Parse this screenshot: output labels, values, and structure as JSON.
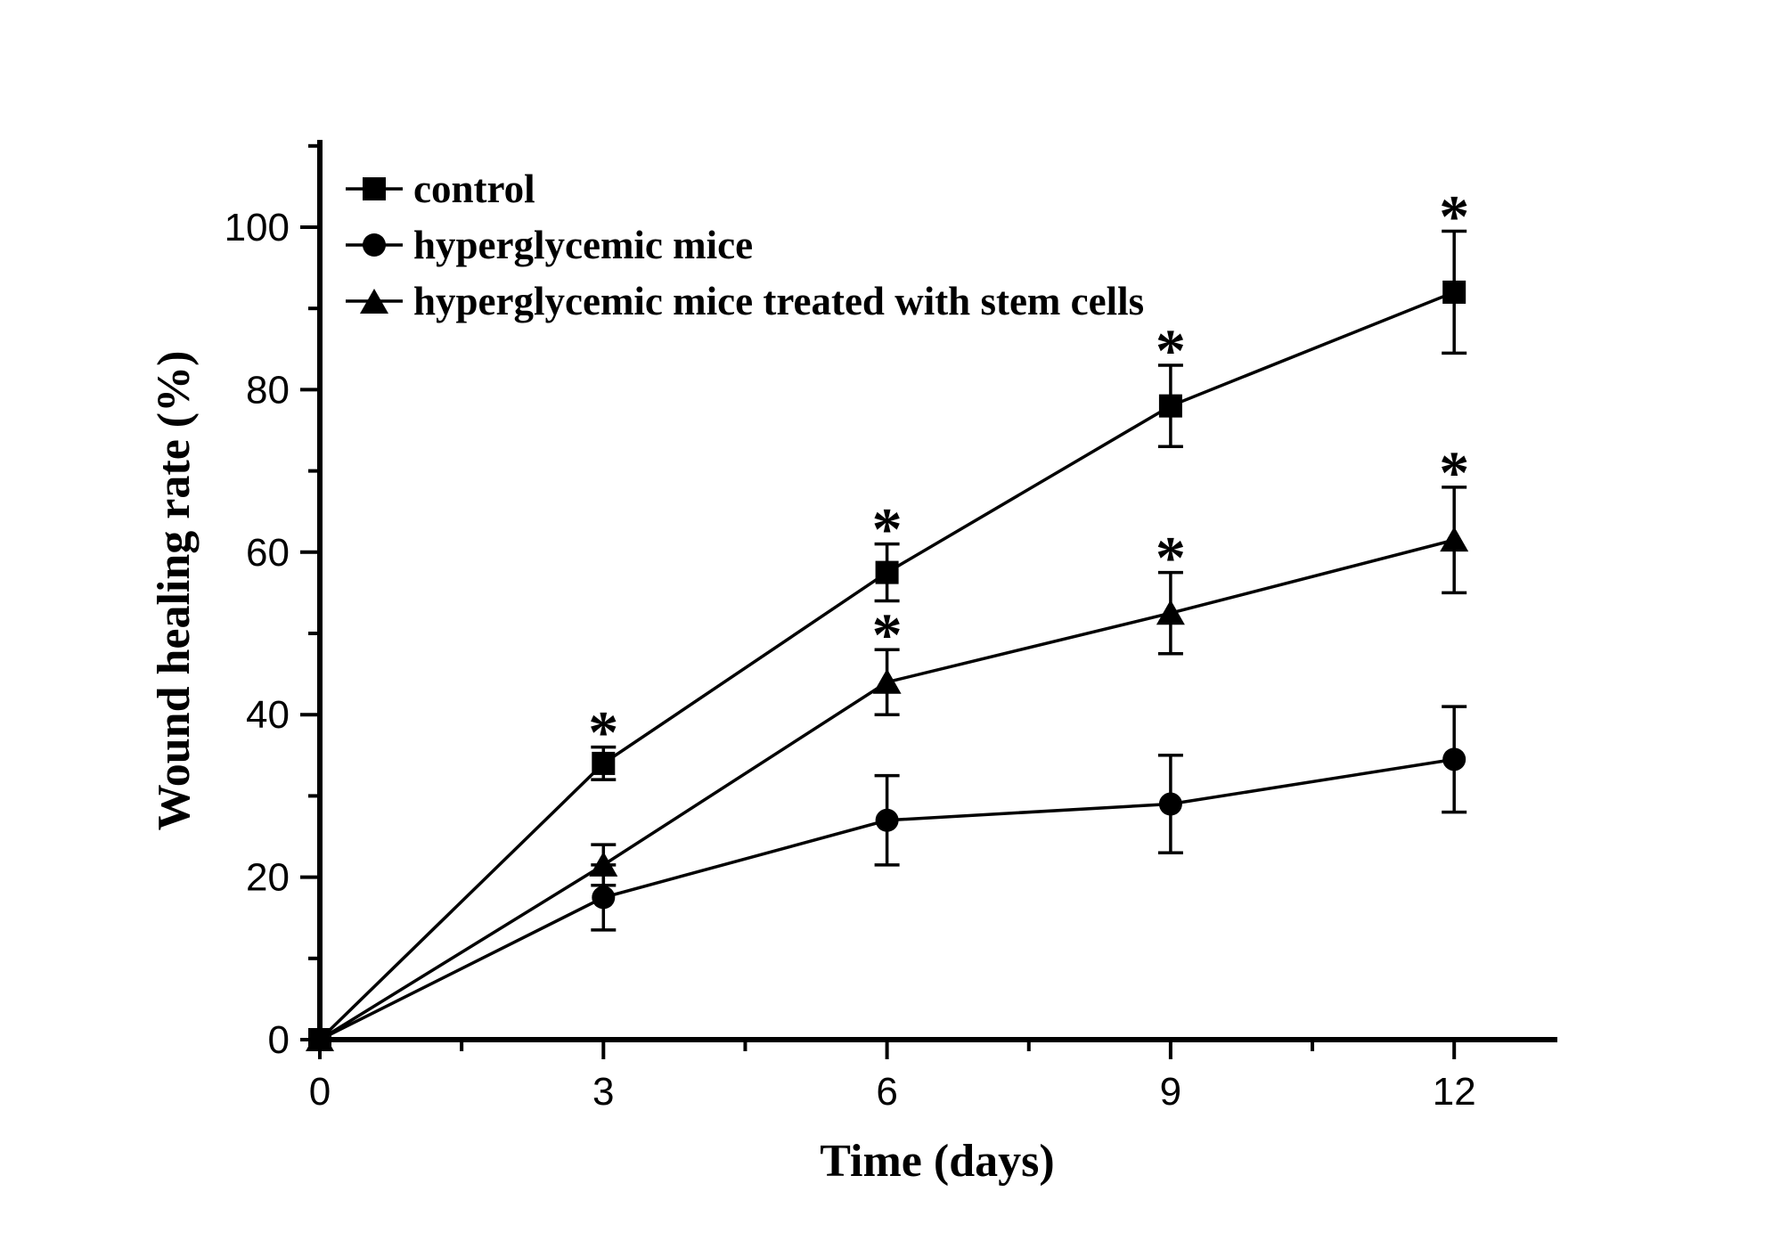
{
  "figure": {
    "background_color": "#ffffff",
    "ink_color": "#000000"
  },
  "chart_data": {
    "type": "line",
    "title": "",
    "xlabel": "Time (days)",
    "ylabel": "Wound healing rate (%)",
    "x": [
      0,
      3,
      6,
      9,
      12
    ],
    "xlim": [
      0,
      13
    ],
    "ylim": [
      0,
      110
    ],
    "x_major_ticks": [
      0,
      3,
      6,
      9,
      12
    ],
    "x_minor_ticks": [
      1.5,
      4.5,
      7.5,
      10.5
    ],
    "x_tick_labels": [
      "0",
      "3",
      "6",
      "9",
      "12"
    ],
    "y_major_ticks": [
      0,
      20,
      40,
      60,
      80,
      100
    ],
    "y_minor_ticks": [
      10,
      30,
      50,
      70,
      90,
      110
    ],
    "y_tick_labels": [
      "0",
      "20",
      "40",
      "60",
      "80",
      "100"
    ],
    "grid": false,
    "legend_position": "inside-top-left",
    "significance_symbol": "*",
    "series": [
      {
        "name": "control",
        "marker": "square",
        "values": [
          0,
          34,
          57.5,
          78,
          92
        ],
        "errors": [
          0,
          2,
          3.5,
          5,
          7.5
        ],
        "significant_days": [
          3,
          6,
          9,
          12
        ]
      },
      {
        "name": "hyperglycemic mice",
        "marker": "circle",
        "values": [
          0,
          17.5,
          27,
          29,
          34.5
        ],
        "errors": [
          0,
          4,
          5.5,
          6,
          6.5
        ],
        "significant_days": []
      },
      {
        "name": "hyperglycemic mice treated with stem cells",
        "marker": "triangle",
        "values": [
          0,
          21.5,
          44,
          52.5,
          61.5
        ],
        "errors": [
          0,
          2.5,
          4,
          5,
          6.5
        ],
        "significant_days": [
          6,
          9,
          12
        ]
      }
    ]
  }
}
